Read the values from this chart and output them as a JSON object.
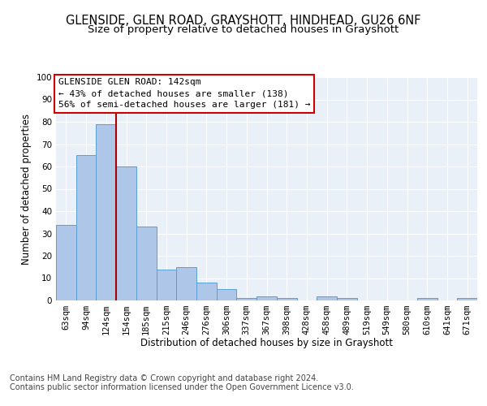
{
  "title1": "GLENSIDE, GLEN ROAD, GRAYSHOTT, HINDHEAD, GU26 6NF",
  "title2": "Size of property relative to detached houses in Grayshott",
  "xlabel": "Distribution of detached houses by size in Grayshott",
  "ylabel": "Number of detached properties",
  "categories": [
    "63sqm",
    "94sqm",
    "124sqm",
    "154sqm",
    "185sqm",
    "215sqm",
    "246sqm",
    "276sqm",
    "306sqm",
    "337sqm",
    "367sqm",
    "398sqm",
    "428sqm",
    "458sqm",
    "489sqm",
    "519sqm",
    "549sqm",
    "580sqm",
    "610sqm",
    "641sqm",
    "671sqm"
  ],
  "values": [
    34,
    65,
    79,
    60,
    33,
    14,
    15,
    8,
    5,
    1,
    2,
    1,
    0,
    2,
    1,
    0,
    0,
    0,
    1,
    0,
    1
  ],
  "bar_color": "#aec6e8",
  "bar_edge_color": "#5a9fd4",
  "vline_x_idx": 2,
  "vline_color": "#aa0000",
  "annotation_text": "GLENSIDE GLEN ROAD: 142sqm\n← 43% of detached houses are smaller (138)\n56% of semi-detached houses are larger (181) →",
  "annotation_box_color": "#ffffff",
  "annotation_box_edge": "#cc0000",
  "ylim": [
    0,
    100
  ],
  "yticks": [
    0,
    10,
    20,
    30,
    40,
    50,
    60,
    70,
    80,
    90,
    100
  ],
  "footer1": "Contains HM Land Registry data © Crown copyright and database right 2024.",
  "footer2": "Contains public sector information licensed under the Open Government Licence v3.0.",
  "bg_color": "#eaf0f8",
  "fig_bg": "#ffffff",
  "title_fontsize": 10.5,
  "subtitle_fontsize": 9.5,
  "axis_label_fontsize": 8.5,
  "tick_fontsize": 7.5,
  "footer_fontsize": 7,
  "annotation_fontsize": 8,
  "ylabel_fontsize": 8.5
}
